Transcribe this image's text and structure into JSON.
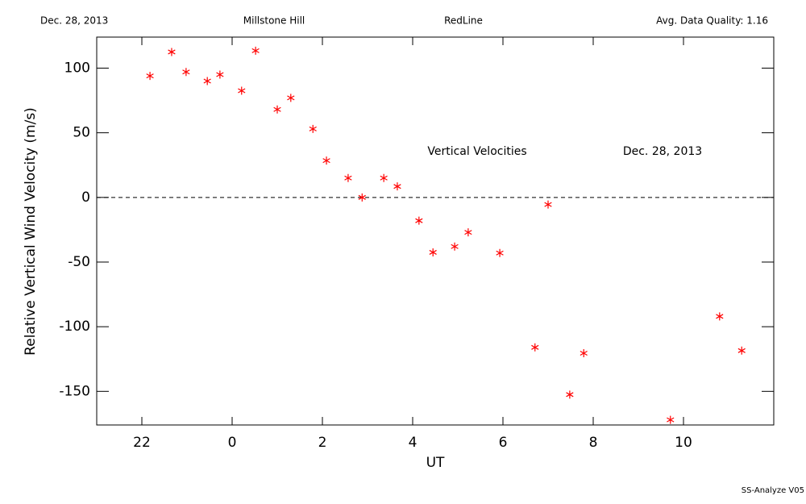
{
  "header": {
    "date": "Dec. 28, 2013",
    "site": "Millstone Hill",
    "instrument": "RedLine",
    "quality": "Avg. Data Quality: 1.16"
  },
  "footer": "SS-Analyze V05",
  "chart_data": {
    "type": "scatter",
    "xlabel": "UT",
    "ylabel": "Relative Vertical Wind Velocity (m/s)",
    "annotations": [
      "Vertical Velocities",
      "Dec. 28, 2013"
    ],
    "xlim": [
      21,
      36
    ],
    "ylim": [
      -176,
      124
    ],
    "xticks": [
      22,
      {
        "value": 24,
        "label": "0"
      },
      {
        "value": 26,
        "label": "2"
      },
      {
        "value": 28,
        "label": "4"
      },
      {
        "value": 30,
        "label": "6"
      },
      {
        "value": 32,
        "label": "8"
      },
      {
        "value": 34,
        "label": "10"
      }
    ],
    "yticks": [
      -150,
      -100,
      -50,
      0,
      50,
      100
    ],
    "hline": 0,
    "marker": "asterisk",
    "series": [
      {
        "color": "#ff0000",
        "x": [
          22.18,
          22.66,
          22.98,
          23.45,
          23.73,
          24.21,
          24.52,
          25.0,
          25.3,
          25.79,
          26.09,
          26.57,
          26.88,
          27.36,
          27.66,
          28.14,
          28.45,
          28.93,
          29.23,
          29.93,
          30.71,
          31.0,
          31.48,
          31.79,
          33.71,
          34.8,
          35.29
        ],
        "values": [
          94,
          112.5,
          97,
          90,
          95,
          82.5,
          113.5,
          68,
          77,
          53,
          28.5,
          15,
          0,
          15,
          8.5,
          -18,
          -42.5,
          -38,
          -27,
          -43,
          -116,
          -5.5,
          -152.5,
          -120.5,
          -172,
          -92,
          -118.5
        ]
      }
    ]
  }
}
